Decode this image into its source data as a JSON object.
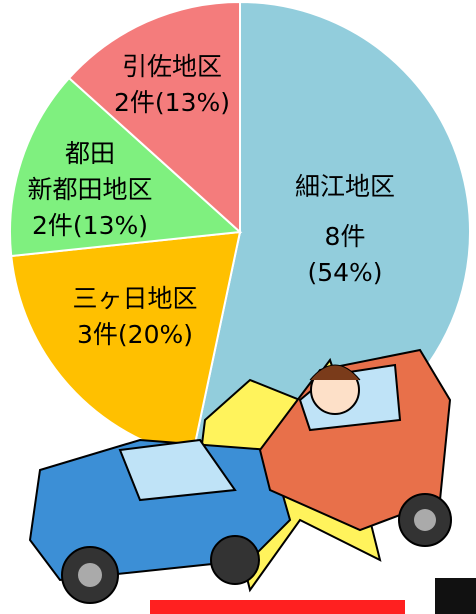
{
  "chart_data": {
    "type": "pie",
    "categories": [
      "細江地区",
      "三ヶ日地区",
      "都田\n新都田地区",
      "引佐地区"
    ],
    "values": [
      8,
      3,
      2,
      2
    ],
    "value_labels": [
      "8件\n(54%)",
      "3件(20%)",
      "2件(13%)",
      "2件(13%)"
    ],
    "colors": [
      "#92cddc",
      "#ffc000",
      "#7ff07f",
      "#f47c7c"
    ]
  }
}
